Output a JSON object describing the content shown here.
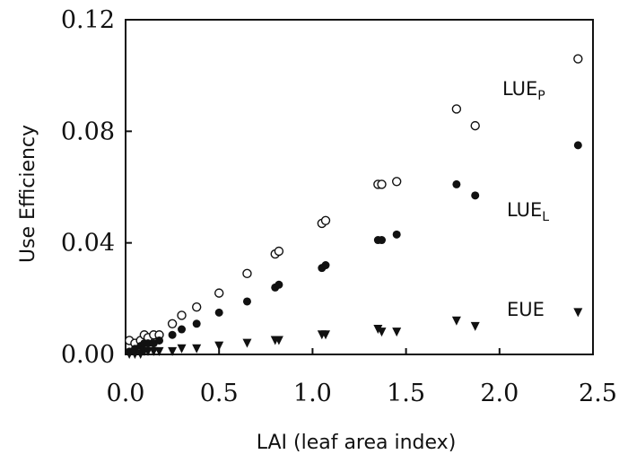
{
  "chart_data": {
    "type": "scatter",
    "title": "",
    "xlabel": "LAI (leaf area index)",
    "ylabel": "Use Efficiency",
    "xlim": [
      0,
      2.5
    ],
    "ylim": [
      0,
      0.12
    ],
    "xticks": [
      "0.0",
      "0.5",
      "1.0",
      "1.5",
      "2.0",
      "2.5"
    ],
    "yticks": [
      "0.00",
      "0.04",
      "0.08",
      "0.12"
    ],
    "grid": false,
    "series": [
      {
        "name": "LUEP",
        "label_main": "LUE",
        "label_sub": "P",
        "marker": "open-circle",
        "x": [
          0.02,
          0.05,
          0.08,
          0.1,
          0.12,
          0.15,
          0.18,
          0.25,
          0.3,
          0.38,
          0.5,
          0.65,
          0.8,
          0.82,
          1.05,
          1.07,
          1.35,
          1.37,
          1.45,
          1.77,
          1.87,
          2.42
        ],
        "y": [
          0.005,
          0.004,
          0.005,
          0.007,
          0.006,
          0.007,
          0.007,
          0.011,
          0.014,
          0.017,
          0.022,
          0.029,
          0.036,
          0.037,
          0.047,
          0.048,
          0.061,
          0.061,
          0.062,
          0.088,
          0.082,
          0.106
        ]
      },
      {
        "name": "LUEL",
        "label_main": "LUE",
        "label_sub": "L",
        "marker": "filled-circle",
        "x": [
          0.02,
          0.05,
          0.08,
          0.1,
          0.12,
          0.15,
          0.18,
          0.25,
          0.3,
          0.38,
          0.5,
          0.65,
          0.8,
          0.82,
          1.05,
          1.07,
          1.35,
          1.37,
          1.45,
          1.77,
          1.87,
          2.42
        ],
        "y": [
          0.001,
          0.002,
          0.003,
          0.004,
          0.004,
          0.004,
          0.005,
          0.007,
          0.009,
          0.011,
          0.015,
          0.019,
          0.024,
          0.025,
          0.031,
          0.032,
          0.041,
          0.041,
          0.043,
          0.061,
          0.057,
          0.075
        ]
      },
      {
        "name": "EUE",
        "label_main": "EUE",
        "label_sub": "",
        "marker": "filled-triangle-down",
        "x": [
          0.02,
          0.05,
          0.08,
          0.1,
          0.12,
          0.15,
          0.18,
          0.25,
          0.3,
          0.38,
          0.5,
          0.65,
          0.8,
          0.82,
          1.05,
          1.07,
          1.35,
          1.37,
          1.45,
          1.77,
          1.87,
          2.42
        ],
        "y": [
          0.0,
          0.0,
          0.0,
          0.001,
          0.001,
          0.001,
          0.001,
          0.001,
          0.002,
          0.002,
          0.003,
          0.004,
          0.005,
          0.005,
          0.007,
          0.007,
          0.009,
          0.008,
          0.008,
          0.012,
          0.01,
          0.015
        ]
      }
    ]
  }
}
